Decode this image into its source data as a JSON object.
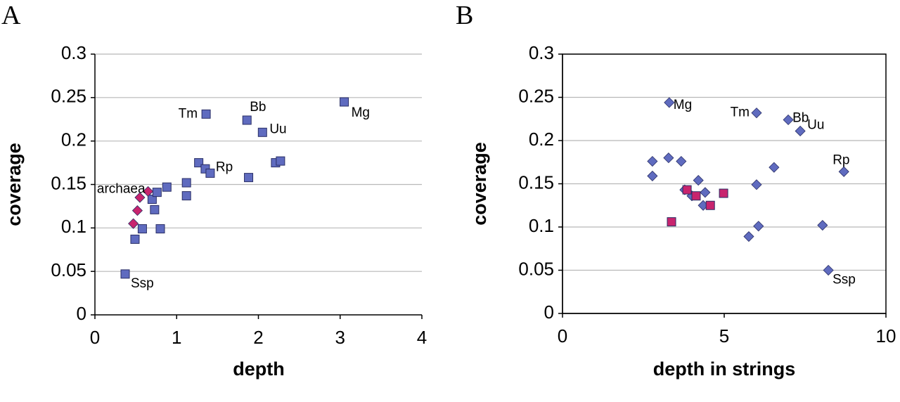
{
  "chart_data": [
    {
      "type": "scatter",
      "panel_label": "A",
      "x_label": "depth",
      "y_label": "coverage",
      "xlim": [
        0,
        4
      ],
      "xticks": [
        0,
        1,
        2,
        3,
        4
      ],
      "ylim": [
        0,
        0.3
      ],
      "yticks": [
        0,
        0.05,
        0.1,
        0.15,
        0.2,
        0.25,
        0.3
      ],
      "grid": true,
      "frame": false,
      "series": [
        {
          "color": "#5f6bbf",
          "marker": "square",
          "x": [
            0.37,
            0.49,
            0.58,
            0.8,
            0.73,
            0.7,
            0.76,
            0.88,
            1.12,
            1.12,
            1.27,
            1.35,
            1.41,
            1.36,
            1.86,
            2.05,
            1.88,
            2.21,
            2.27,
            3.05
          ],
          "values": [
            0.047,
            0.087,
            0.099,
            0.099,
            0.121,
            0.133,
            0.141,
            0.147,
            0.152,
            0.137,
            0.175,
            0.168,
            0.163,
            0.231,
            0.224,
            0.21,
            0.158,
            0.175,
            0.177,
            0.245
          ],
          "point_labels": [
            "Ssp",
            null,
            null,
            null,
            null,
            null,
            null,
            null,
            null,
            null,
            null,
            null,
            "Rp",
            "Tm",
            "Bb",
            "Uu",
            null,
            null,
            null,
            "Mg"
          ]
        },
        {
          "color": "#c8246e",
          "marker": "diamond",
          "x": [
            0.65,
            0.55,
            0.52,
            0.47
          ],
          "values": [
            0.142,
            0.135,
            0.12,
            0.105
          ],
          "point_labels": [
            "archaea",
            null,
            null,
            null
          ]
        }
      ]
    },
    {
      "type": "scatter",
      "panel_label": "B",
      "x_label": "depth in strings",
      "y_label": "coverage",
      "xlim": [
        0,
        10
      ],
      "xticks": [
        0,
        5,
        10
      ],
      "ylim": [
        0,
        0.3
      ],
      "yticks": [
        0,
        0.05,
        0.1,
        0.15,
        0.2,
        0.25,
        0.3
      ],
      "grid": true,
      "frame": true,
      "series": [
        {
          "color": "#5f6bbf",
          "marker": "diamond",
          "x": [
            3.3,
            6.0,
            6.98,
            7.35,
            8.7,
            6.54,
            6.0,
            6.06,
            5.76,
            8.04,
            8.22,
            2.78,
            2.78,
            3.28,
            3.67,
            3.78,
            4.2,
            4.41,
            4.0,
            4.35
          ],
          "values": [
            0.244,
            0.232,
            0.224,
            0.211,
            0.164,
            0.169,
            0.149,
            0.101,
            0.089,
            0.102,
            0.05,
            0.176,
            0.159,
            0.18,
            0.176,
            0.143,
            0.154,
            0.14,
            0.136,
            0.125
          ],
          "point_labels": [
            "Mg",
            "Tm",
            "Bb",
            "Uu",
            "Rp",
            null,
            null,
            null,
            null,
            null,
            "Ssp",
            null,
            null,
            null,
            null,
            null,
            null,
            null,
            null,
            null
          ]
        },
        {
          "color": "#c8246e",
          "marker": "square",
          "x": [
            3.37,
            3.85,
            4.13,
            4.57,
            4.98
          ],
          "values": [
            0.106,
            0.143,
            0.136,
            0.125,
            0.139
          ]
        }
      ]
    }
  ]
}
